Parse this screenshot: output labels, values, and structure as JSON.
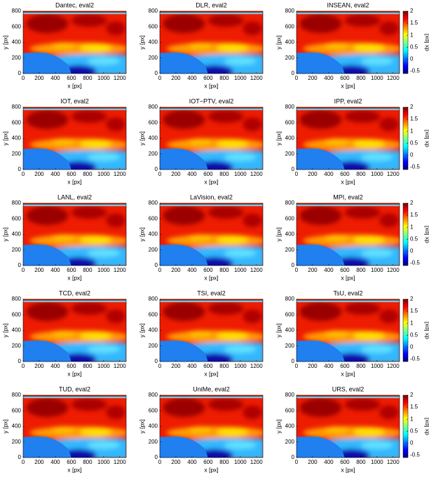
{
  "chart_data": [
    {
      "type": "heatmap",
      "title": "Dantec, eval2",
      "xlabel": "x [px]",
      "ylabel": "y [px]",
      "xlim": [
        0,
        1280
      ],
      "ylim": [
        0,
        800
      ],
      "xticks": [
        0,
        200,
        400,
        600,
        800,
        1000,
        1200
      ],
      "yticks": [
        0,
        200,
        400,
        600,
        800
      ]
    },
    {
      "type": "heatmap",
      "title": "DLR, eval2",
      "xlabel": "x [px]",
      "ylabel": "y [px]",
      "xlim": [
        0,
        1280
      ],
      "ylim": [
        0,
        800
      ],
      "xticks": [
        0,
        200,
        400,
        600,
        800,
        1000,
        1200
      ],
      "yticks": [
        0,
        200,
        400,
        600,
        800
      ]
    },
    {
      "type": "heatmap",
      "title": "INSEAN, eval2",
      "xlabel": "x [px]",
      "ylabel": "y [px]",
      "xlim": [
        0,
        1280
      ],
      "ylim": [
        0,
        800
      ],
      "xticks": [
        0,
        200,
        400,
        600,
        800,
        1000,
        1200
      ],
      "yticks": [
        0,
        200,
        400,
        600,
        800
      ],
      "colorbar": {
        "label": "dx [px]",
        "clim": [
          -0.6,
          2
        ],
        "ticks": [
          -0.5,
          0,
          0.5,
          1,
          1.5,
          2
        ]
      }
    },
    {
      "type": "heatmap",
      "title": "IOT, eval2",
      "xlabel": "x [px]",
      "ylabel": "y [px]",
      "xlim": [
        0,
        1280
      ],
      "ylim": [
        0,
        800
      ],
      "xticks": [
        0,
        200,
        400,
        600,
        800,
        1000,
        1200
      ],
      "yticks": [
        0,
        200,
        400,
        600,
        800
      ]
    },
    {
      "type": "heatmap",
      "title": "IOT−PTV, eval2",
      "xlabel": "x [px]",
      "ylabel": "y [px]",
      "xlim": [
        0,
        1280
      ],
      "ylim": [
        0,
        800
      ],
      "xticks": [
        0,
        200,
        400,
        600,
        800,
        1000,
        1200
      ],
      "yticks": [
        0,
        200,
        400,
        600,
        800
      ]
    },
    {
      "type": "heatmap",
      "title": "IPP, eval2",
      "xlabel": "x [px]",
      "ylabel": "y [px]",
      "xlim": [
        0,
        1280
      ],
      "ylim": [
        0,
        800
      ],
      "xticks": [
        0,
        200,
        400,
        600,
        800,
        1000,
        1200
      ],
      "yticks": [
        0,
        200,
        400,
        600,
        800
      ],
      "colorbar": {
        "label": "dx [px]",
        "clim": [
          -0.6,
          2
        ],
        "ticks": [
          -0.5,
          0,
          0.5,
          1,
          1.5,
          2
        ]
      }
    },
    {
      "type": "heatmap",
      "title": "LANL, eval2",
      "xlabel": "x [px]",
      "ylabel": "y [px]",
      "xlim": [
        0,
        1280
      ],
      "ylim": [
        0,
        800
      ],
      "xticks": [
        0,
        200,
        400,
        600,
        800,
        1000,
        1200
      ],
      "yticks": [
        0,
        200,
        400,
        600,
        800
      ]
    },
    {
      "type": "heatmap",
      "title": "LaVision, eval2",
      "xlabel": "x [px]",
      "ylabel": "y [px]",
      "xlim": [
        0,
        1280
      ],
      "ylim": [
        0,
        800
      ],
      "xticks": [
        0,
        200,
        400,
        600,
        800,
        1000,
        1200
      ],
      "yticks": [
        0,
        200,
        400,
        600,
        800
      ]
    },
    {
      "type": "heatmap",
      "title": "MPI, eval2",
      "xlabel": "x [px]",
      "ylabel": "y [px]",
      "xlim": [
        0,
        1280
      ],
      "ylim": [
        0,
        800
      ],
      "xticks": [
        0,
        200,
        400,
        600,
        800,
        1000,
        1200
      ],
      "yticks": [
        0,
        200,
        400,
        600,
        800
      ],
      "colorbar": {
        "label": "dx [px]",
        "clim": [
          -0.6,
          2
        ],
        "ticks": [
          -0.5,
          0,
          0.5,
          1,
          1.5,
          2
        ]
      }
    },
    {
      "type": "heatmap",
      "title": "TCD, eval2",
      "xlabel": "x [px]",
      "ylabel": "y [px]",
      "xlim": [
        0,
        1280
      ],
      "ylim": [
        0,
        800
      ],
      "xticks": [
        0,
        200,
        400,
        600,
        800,
        1000,
        1200
      ],
      "yticks": [
        0,
        200,
        400,
        600,
        800
      ]
    },
    {
      "type": "heatmap",
      "title": "TSI, eval2",
      "xlabel": "x [px]",
      "ylabel": "y [px]",
      "xlim": [
        0,
        1280
      ],
      "ylim": [
        0,
        800
      ],
      "xticks": [
        0,
        200,
        400,
        600,
        800,
        1000,
        1200
      ],
      "yticks": [
        0,
        200,
        400,
        600,
        800
      ]
    },
    {
      "type": "heatmap",
      "title": "TsU, eval2",
      "xlabel": "x [px]",
      "ylabel": "y [px]",
      "xlim": [
        0,
        1280
      ],
      "ylim": [
        0,
        800
      ],
      "xticks": [
        0,
        200,
        400,
        600,
        800,
        1000,
        1200
      ],
      "yticks": [
        0,
        200,
        400,
        600,
        800
      ],
      "colorbar": {
        "label": "dx [px]",
        "clim": [
          -0.6,
          2
        ],
        "ticks": [
          -0.5,
          0,
          0.5,
          1,
          1.5,
          2
        ]
      }
    },
    {
      "type": "heatmap",
      "title": "TUD, eval2",
      "xlabel": "x [px]",
      "ylabel": "y [px]",
      "xlim": [
        0,
        1280
      ],
      "ylim": [
        0,
        800
      ],
      "xticks": [
        0,
        200,
        400,
        600,
        800,
        1000,
        1200
      ],
      "yticks": [
        0,
        200,
        400,
        600,
        800
      ]
    },
    {
      "type": "heatmap",
      "title": "UniMe, eval2",
      "xlabel": "x [px]",
      "ylabel": "y [px]",
      "xlim": [
        0,
        1280
      ],
      "ylim": [
        0,
        800
      ],
      "xticks": [
        0,
        200,
        400,
        600,
        800,
        1000,
        1200
      ],
      "yticks": [
        0,
        200,
        400,
        600,
        800
      ]
    },
    {
      "type": "heatmap",
      "title": "URS, eval2",
      "xlabel": "x [px]",
      "ylabel": "y [px]",
      "xlim": [
        0,
        1280
      ],
      "ylim": [
        0,
        800
      ],
      "xticks": [
        0,
        200,
        400,
        600,
        800,
        1000,
        1200
      ],
      "yticks": [
        0,
        200,
        400,
        600,
        800
      ],
      "colorbar": {
        "label": "dx [px]",
        "clim": [
          -0.6,
          2
        ],
        "ticks": [
          -0.5,
          0,
          0.5,
          1,
          1.5,
          2
        ]
      }
    }
  ]
}
